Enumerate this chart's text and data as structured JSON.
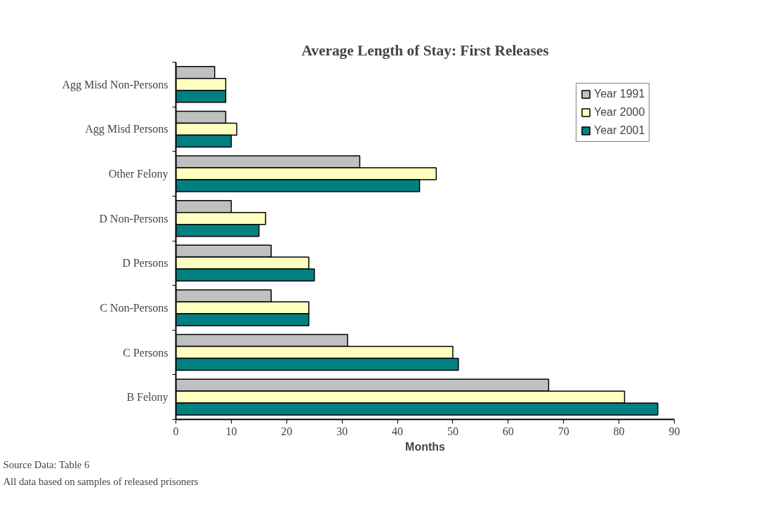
{
  "chart_data": {
    "type": "bar",
    "orientation": "horizontal",
    "title": "Average Length of Stay: First Releases",
    "xlabel": "Months",
    "categories": [
      "Agg Misd Non-Persons",
      "Agg Misd Persons",
      "Other Felony",
      "D Non-Persons",
      "D Persons",
      "C Non-Persons",
      "C Persons",
      "B Felony"
    ],
    "series": [
      {
        "name": "Year 1991",
        "color": "#c0c0c0",
        "values": [
          7,
          9,
          33.2,
          10,
          17.2,
          17.2,
          31,
          67.3
        ]
      },
      {
        "name": "Year 2000",
        "color": "#ffffc0",
        "values": [
          9,
          11,
          47,
          16.2,
          24,
          24,
          50,
          81
        ]
      },
      {
        "name": "Year 2001",
        "color": "#008080",
        "values": [
          9,
          10,
          44,
          15,
          25,
          24,
          51,
          87
        ]
      }
    ],
    "xlim": [
      0,
      90
    ],
    "xticks": [
      0,
      10,
      20,
      30,
      40,
      50,
      60,
      70,
      80,
      90
    ],
    "grid": false,
    "legend": "top right",
    "annotations": [
      "Source Data: Table 6",
      "All data based on samples of released prisoners"
    ]
  }
}
